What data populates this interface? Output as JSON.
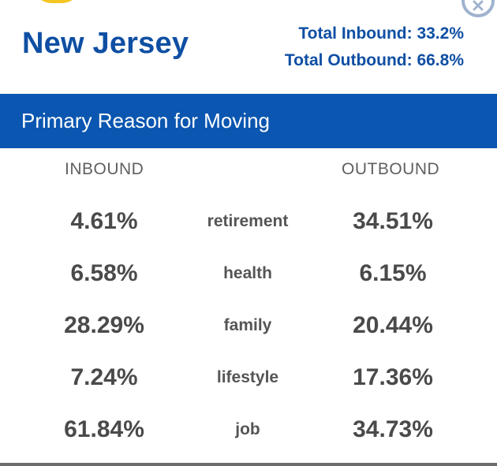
{
  "header": {
    "state_name": "New Jersey",
    "total_inbound": "Total Inbound: 33.2%",
    "total_outbound": "Total Outbound: 66.8%"
  },
  "banner": {
    "title": "Primary Reason for Moving"
  },
  "columns": {
    "inbound_label": "INBOUND",
    "outbound_label": "OUTBOUND"
  },
  "rows": [
    {
      "reason": "retirement",
      "inbound": "4.61%",
      "outbound": "34.51%"
    },
    {
      "reason": "health",
      "inbound": "6.58%",
      "outbound": "6.15%"
    },
    {
      "reason": "family",
      "inbound": "28.29%",
      "outbound": "20.44%"
    },
    {
      "reason": "lifestyle",
      "inbound": "7.24%",
      "outbound": "17.36%"
    },
    {
      "reason": "job",
      "inbound": "61.84%",
      "outbound": "34.73%"
    }
  ],
  "icons": {
    "close": "close-icon",
    "logo": "logo-icon"
  },
  "colors": {
    "brand_blue": "#0f4fa3",
    "banner_blue": "#0a56b0",
    "text_gray": "#4a4a4a",
    "logo_yellow": "#f3c623"
  }
}
